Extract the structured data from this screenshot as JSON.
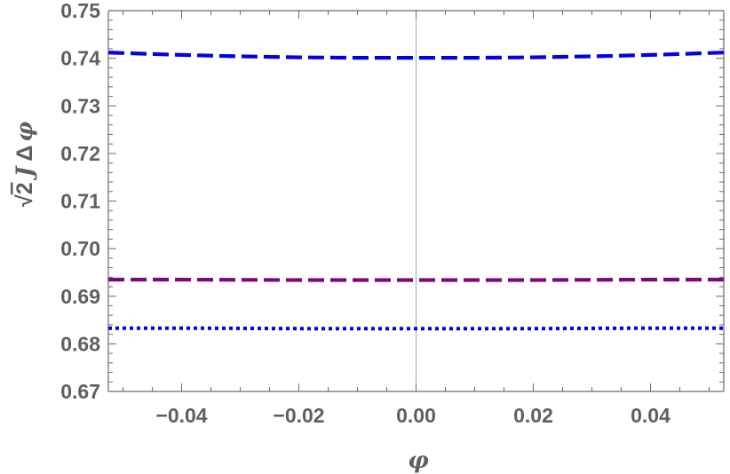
{
  "chart_data": {
    "type": "line",
    "title": "",
    "xlabel": "φ",
    "ylabel": {
      "radicand": "2",
      "rest_italic": "J",
      "rest_delta": "Δ",
      "rest_symbol": "φ"
    },
    "xlim": [
      -0.0525,
      0.0525
    ],
    "ylim": [
      0.67,
      0.75
    ],
    "xticks": [
      -0.04,
      -0.02,
      0.0,
      0.02,
      0.04
    ],
    "xtick_labels": [
      "−0.04",
      "−0.02",
      "0.00",
      "0.02",
      "0.04"
    ],
    "yticks": [
      0.67,
      0.68,
      0.69,
      0.7,
      0.71,
      0.72,
      0.73,
      0.74,
      0.75
    ],
    "ytick_labels": [
      "0.67",
      "0.68",
      "0.69",
      "0.70",
      "0.71",
      "0.72",
      "0.73",
      "0.74",
      "0.75"
    ],
    "grid": false,
    "legend": "none",
    "series": [
      {
        "style": "dashed",
        "color": "#0000e6",
        "x": [
          -0.0525,
          -0.04,
          -0.03,
          -0.02,
          -0.01,
          0.0,
          0.01,
          0.02,
          0.03,
          0.04,
          0.0525
        ],
        "y": [
          0.7412,
          0.7407,
          0.7404,
          0.7402,
          0.7401,
          0.7401,
          0.7401,
          0.7402,
          0.7404,
          0.7407,
          0.7412
        ]
      },
      {
        "style": "dashed",
        "color": "#7a0a7a",
        "x": [
          -0.0525,
          -0.04,
          -0.02,
          0.0,
          0.02,
          0.04,
          0.0525
        ],
        "y": [
          0.6935,
          0.6935,
          0.6934,
          0.6934,
          0.6934,
          0.6935,
          0.6935
        ]
      },
      {
        "style": "dotted",
        "color": "#0000e6",
        "x": [
          -0.0525,
          -0.04,
          -0.02,
          0.0,
          0.02,
          0.04,
          0.0525
        ],
        "y": [
          0.6833,
          0.6833,
          0.6832,
          0.6832,
          0.6832,
          0.6833,
          0.6833
        ]
      }
    ]
  }
}
